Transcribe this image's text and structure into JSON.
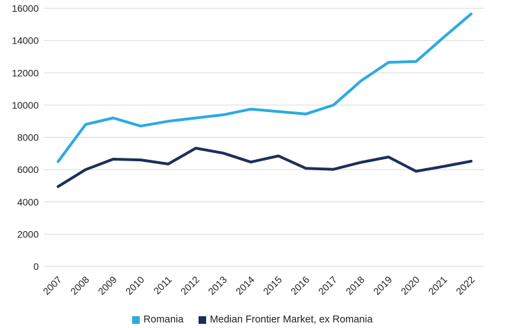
{
  "chart_data": {
    "type": "line",
    "categories": [
      "2007",
      "2008",
      "2009",
      "2010",
      "2011",
      "2012",
      "2013",
      "2014",
      "2015",
      "2016",
      "2017",
      "2018",
      "2019",
      "2020",
      "2021",
      "2022"
    ],
    "series": [
      {
        "name": "Romania",
        "color": "#2CAAE2",
        "values": [
          6500,
          8800,
          9200,
          8700,
          9000,
          9200,
          9400,
          9750,
          9600,
          9450,
          10000,
          11500,
          12650,
          12700,
          14200,
          15650
        ]
      },
      {
        "name": "Median Frontier Market, ex Romania",
        "color": "#1B2F5A",
        "values": [
          4950,
          6000,
          6650,
          6600,
          6350,
          7330,
          7020,
          6470,
          6850,
          6080,
          6020,
          6450,
          6780,
          5900,
          6200,
          6520
        ]
      }
    ],
    "y_ticks": [
      "0",
      "2000",
      "4000",
      "6000",
      "8000",
      "10000",
      "12000",
      "14000",
      "16000"
    ],
    "ylim": [
      0,
      16000
    ],
    "grid": "horizontal",
    "legend_position": "bottom"
  }
}
